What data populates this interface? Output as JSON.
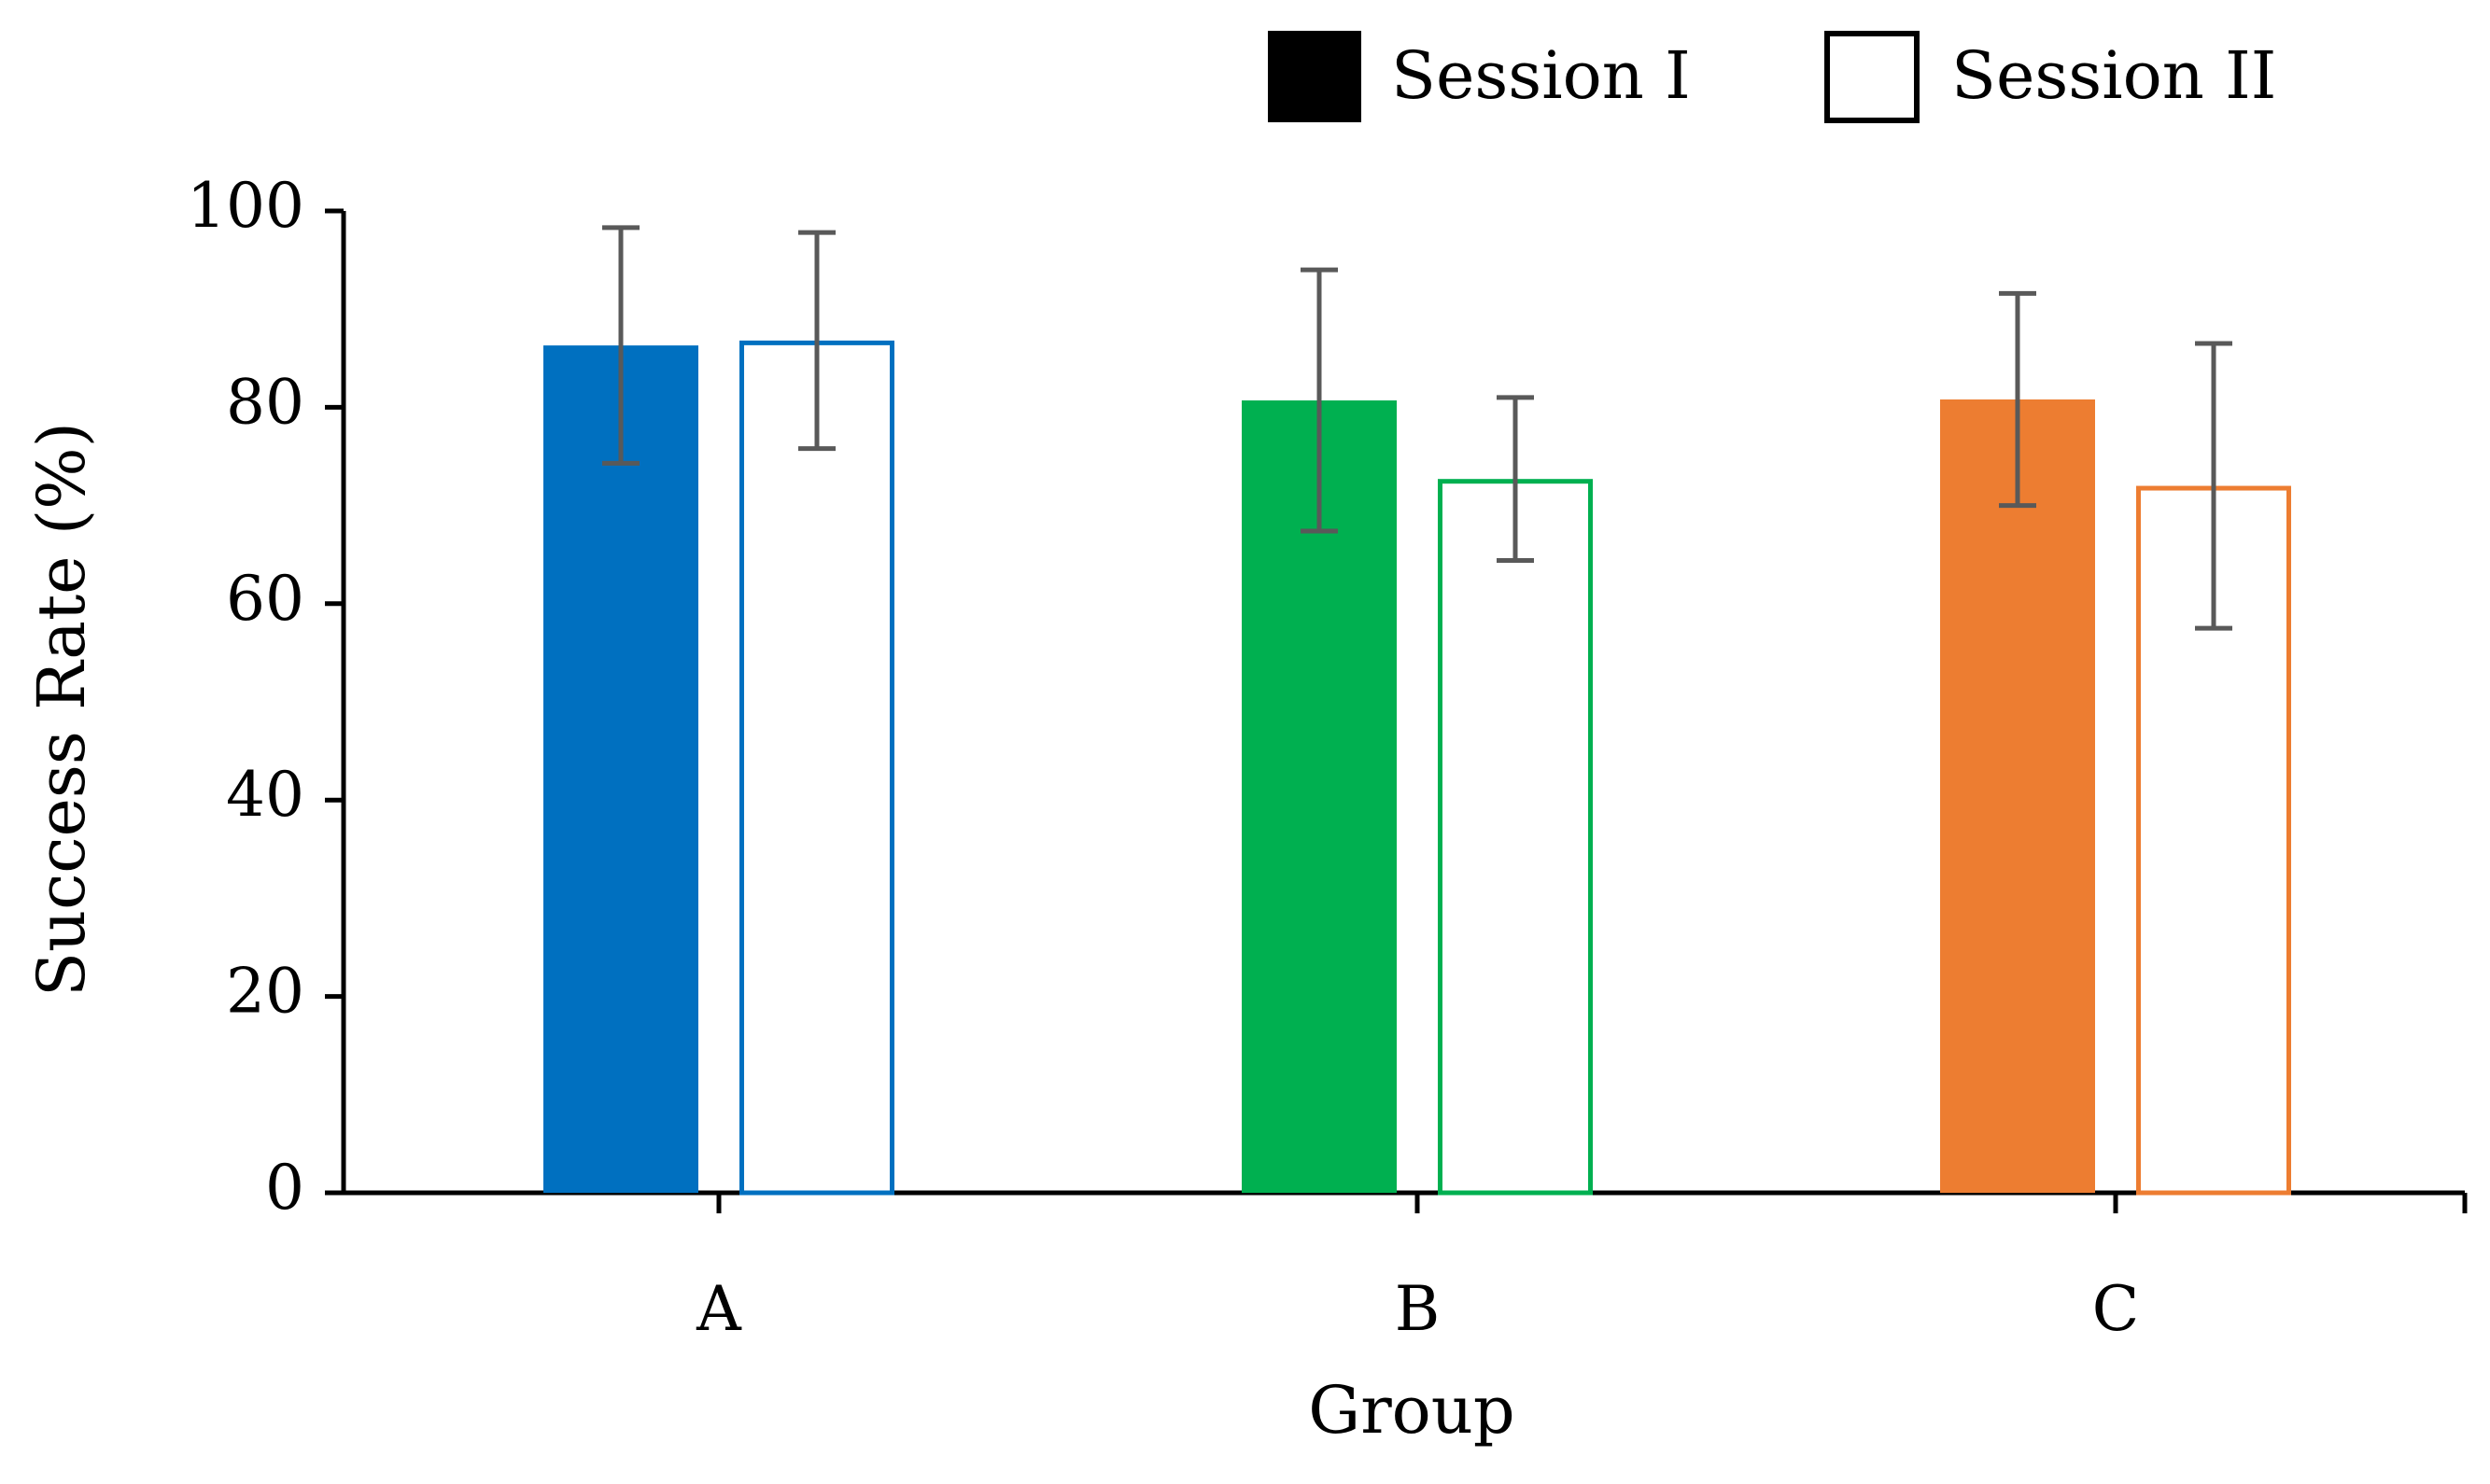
{
  "chart_data": {
    "type": "bar",
    "title": "",
    "xlabel": "Group",
    "ylabel": "Success Rate (%)",
    "ylim": [
      0,
      100
    ],
    "yticks": [
      0,
      20,
      40,
      60,
      80,
      100
    ],
    "grid": false,
    "legend_position": "top-right",
    "categories": [
      "A",
      "B",
      "C"
    ],
    "colors": [
      "#0070C0",
      "#00B050",
      "#ED7D31"
    ],
    "legend_session1_color": "#000000",
    "series": [
      {
        "name": "Session I",
        "style": "filled",
        "values": [
          86.3,
          80.7,
          80.8
        ],
        "errors": [
          12.0,
          13.3,
          10.8
        ]
      },
      {
        "name": "Session II",
        "style": "outline",
        "values": [
          86.8,
          72.7,
          72.0
        ],
        "errors": [
          11.0,
          8.3,
          14.5
        ]
      }
    ]
  }
}
